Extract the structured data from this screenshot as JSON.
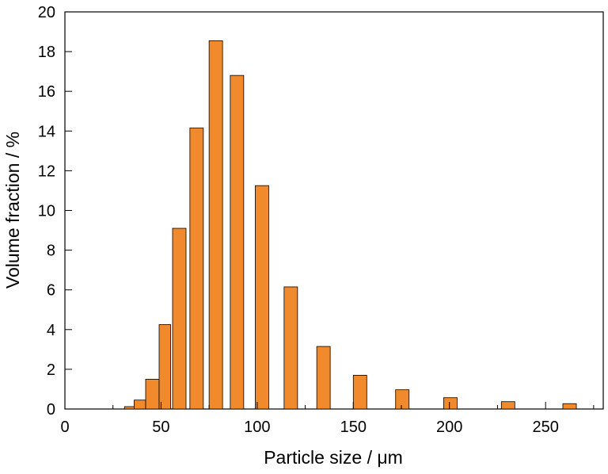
{
  "chart_data": {
    "type": "bar",
    "xlabel": "Particle size / μm",
    "ylabel": "Volume fraction / %",
    "xlim": [
      0,
      280
    ],
    "ylim": [
      0,
      20
    ],
    "x_ticks": [
      "0",
      "50",
      "100",
      "150",
      "200",
      "250"
    ],
    "y_ticks": [
      "0",
      "2",
      "4",
      "6",
      "8",
      "10",
      "12",
      "14",
      "16",
      "18",
      "20"
    ],
    "grid": false,
    "bar_color": "#F08A2C",
    "bars": [
      {
        "x_start": 31,
        "x_end": 36,
        "value": 0.12
      },
      {
        "x_start": 36,
        "x_end": 42,
        "value": 0.45
      },
      {
        "x_start": 42,
        "x_end": 49,
        "value": 1.5
      },
      {
        "x_start": 49,
        "x_end": 55,
        "value": 4.25
      },
      {
        "x_start": 56,
        "x_end": 63,
        "value": 9.1
      },
      {
        "x_start": 65,
        "x_end": 72,
        "value": 14.15
      },
      {
        "x_start": 75,
        "x_end": 82,
        "value": 18.55
      },
      {
        "x_start": 86,
        "x_end": 93,
        "value": 16.8
      },
      {
        "x_start": 99,
        "x_end": 106,
        "value": 11.25
      },
      {
        "x_start": 114,
        "x_end": 121,
        "value": 6.15
      },
      {
        "x_start": 131,
        "x_end": 138,
        "value": 3.15
      },
      {
        "x_start": 150,
        "x_end": 157,
        "value": 1.7
      },
      {
        "x_start": 172,
        "x_end": 179,
        "value": 0.97
      },
      {
        "x_start": 197,
        "x_end": 204,
        "value": 0.57
      },
      {
        "x_start": 227,
        "x_end": 234,
        "value": 0.37
      },
      {
        "x_start": 259,
        "x_end": 266,
        "value": 0.27
      }
    ]
  }
}
